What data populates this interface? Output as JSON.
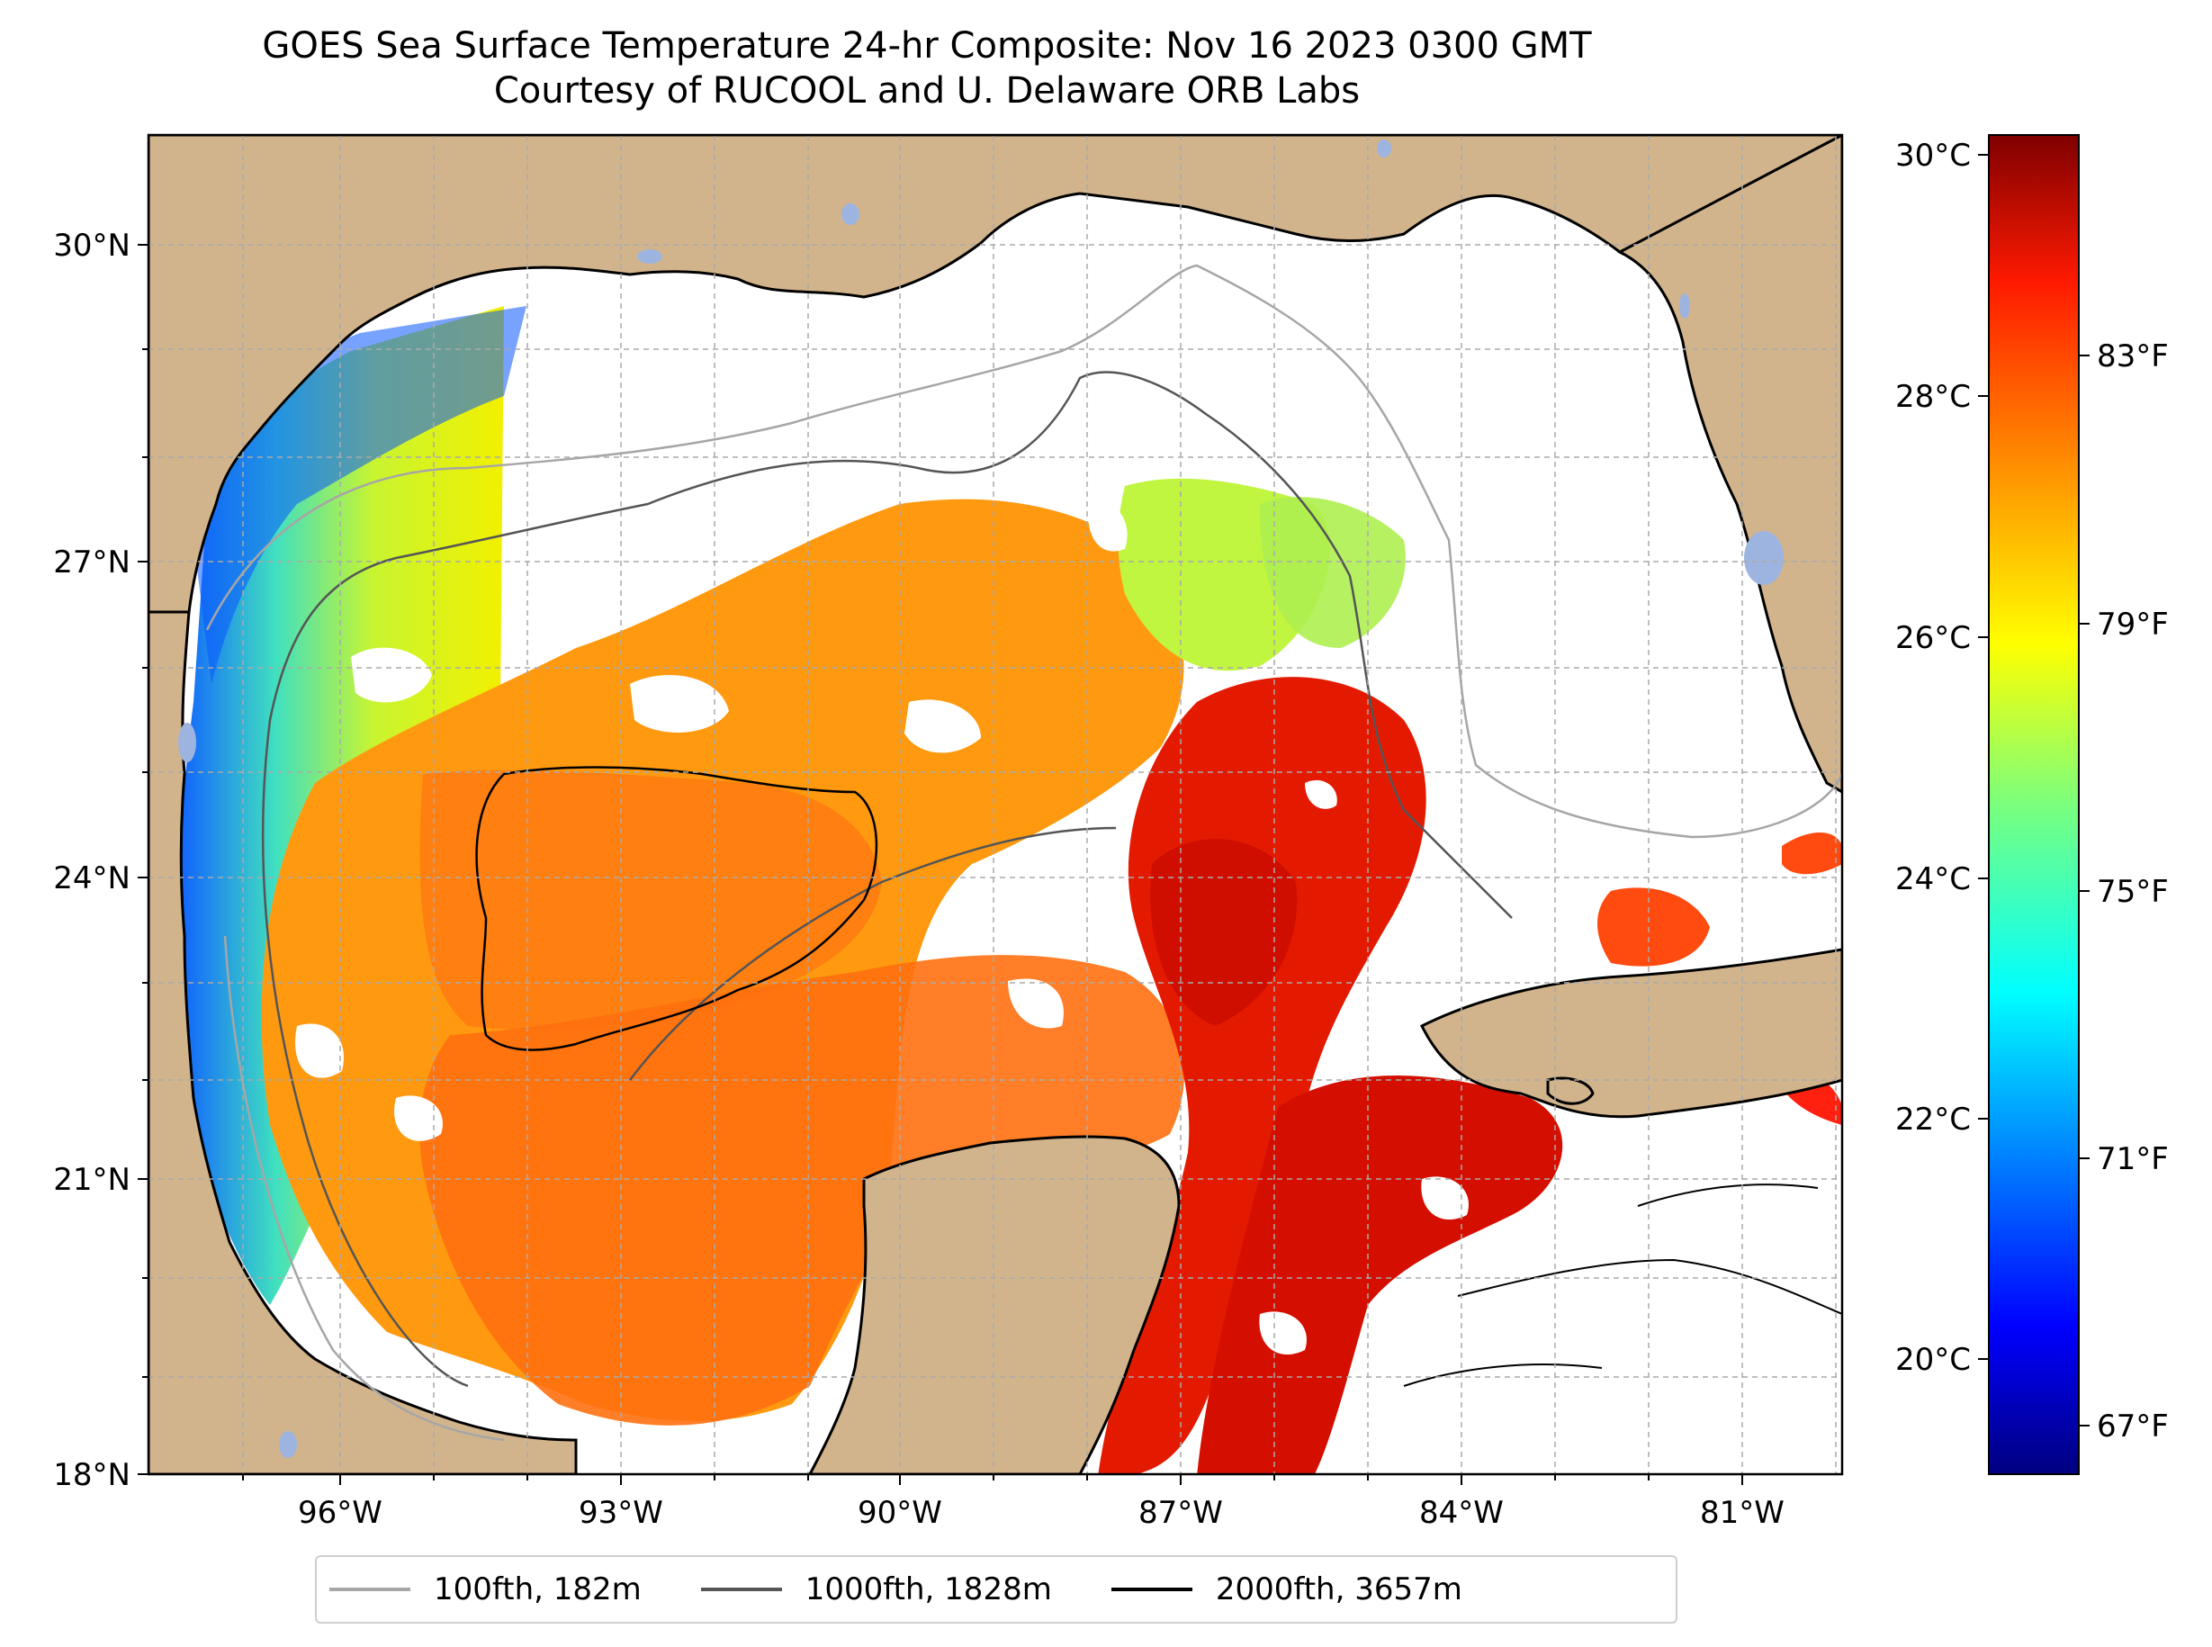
{
  "title": {
    "line1": "GOES Sea Surface Temperature 24-hr Composite: Nov 16 2023 0300 GMT",
    "line2": "Courtesy of RUCOOL and U. Delaware ORB Labs"
  },
  "map": {
    "lat_labels": [
      "30°N",
      "27°N",
      "24°N",
      "21°N",
      "18°N"
    ],
    "lon_labels": [
      "96°W",
      "93°W",
      "90°W",
      "87°W",
      "84°W",
      "81°W"
    ],
    "colors": {
      "land": "#d2b48c",
      "lake": "#9db4e0",
      "no_data": "#ffffff",
      "gridline": "#aaaaaa"
    }
  },
  "colorbar": {
    "celsius_ticks": [
      "30°C",
      "28°C",
      "26°C",
      "24°C",
      "22°C",
      "20°C"
    ],
    "fahrenheit_ticks": [
      "83°F",
      "79°F",
      "75°F",
      "71°F",
      "67°F"
    ],
    "colormap": "jet"
  },
  "legend": [
    {
      "label": "100fth, 182m",
      "color": "#a6a6a6"
    },
    {
      "label": "1000fth, 1828m",
      "color": "#555555"
    },
    {
      "label": "2000fth, 3657m",
      "color": "#000000"
    }
  ]
}
